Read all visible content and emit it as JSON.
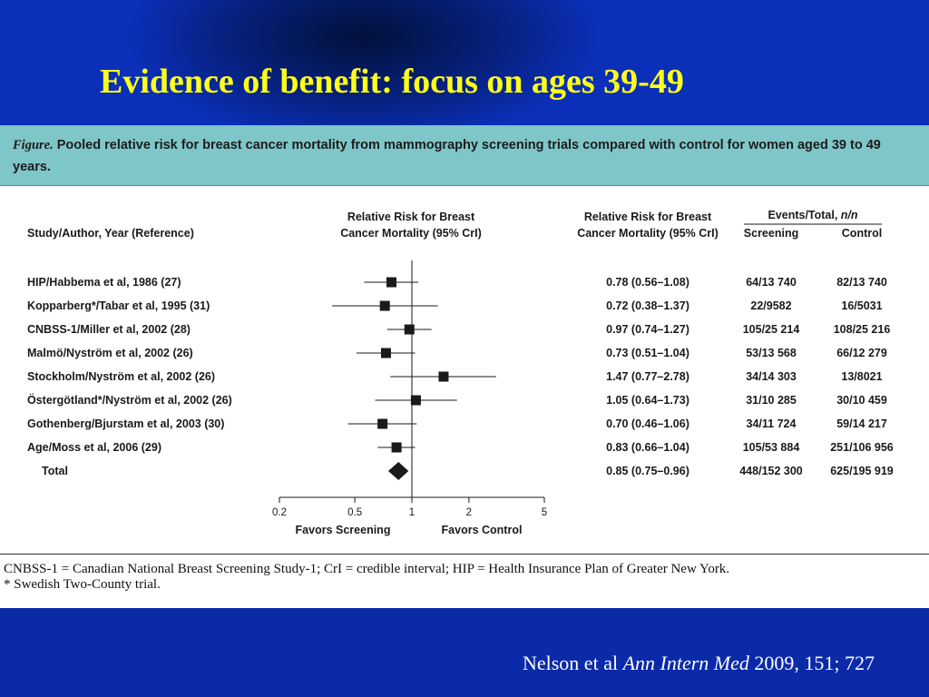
{
  "slide_title": "Evidence of benefit: focus on ages 39-49",
  "caption": {
    "label": "Figure.",
    "text": "Pooled relative risk for breast cancer mortality from mammography screening trials compared with control for women aged 39 to 49 years."
  },
  "table_headers": {
    "study": "Study/Author, Year (Reference)",
    "rr_plot_line1": "Relative Risk for Breast",
    "rr_plot_line2": "Cancer Mortality (95% CrI)",
    "rr_value_line1": "Relative Risk for Breast",
    "rr_value_line2": "Cancer Mortality (95% CrI)",
    "events_title_plain": "Events/Total, ",
    "events_title_italic": "n/n",
    "screening": "Screening",
    "control": "Control"
  },
  "chart_data": {
    "type": "forest",
    "scale": "log",
    "xlim": [
      0.2,
      5
    ],
    "xticks": [
      "0.2",
      "0.5",
      "1",
      "2",
      "5"
    ],
    "reference_line": 1,
    "xlabel_left": "Favors Screening",
    "xlabel_right": "Favors Control",
    "rows": [
      {
        "study": "HIP/Habbema et al, 1986 (27)",
        "rr": 0.78,
        "lo": 0.56,
        "hi": 1.08,
        "rr_text": "0.78 (0.56–1.08)",
        "screening": "64/13 740",
        "control": "82/13 740"
      },
      {
        "study": "Kopparberg*/Tabar et al, 1995 (31)",
        "rr": 0.72,
        "lo": 0.38,
        "hi": 1.37,
        "rr_text": "0.72 (0.38–1.37)",
        "screening": "22/9582",
        "control": "16/5031"
      },
      {
        "study": "CNBSS-1/Miller et al, 2002 (28)",
        "rr": 0.97,
        "lo": 0.74,
        "hi": 1.27,
        "rr_text": "0.97 (0.74–1.27)",
        "screening": "105/25 214",
        "control": "108/25 216"
      },
      {
        "study": "Malmö/Nyström et al, 2002 (26)",
        "rr": 0.73,
        "lo": 0.51,
        "hi": 1.04,
        "rr_text": "0.73 (0.51–1.04)",
        "screening": "53/13 568",
        "control": "66/12 279"
      },
      {
        "study": "Stockholm/Nyström et al, 2002 (26)",
        "rr": 1.47,
        "lo": 0.77,
        "hi": 2.78,
        "rr_text": "1.47 (0.77–2.78)",
        "screening": "34/14 303",
        "control": "13/8021"
      },
      {
        "study": "Östergötland*/Nyström et al, 2002 (26)",
        "rr": 1.05,
        "lo": 0.64,
        "hi": 1.73,
        "rr_text": "1.05 (0.64–1.73)",
        "screening": "31/10 285",
        "control": "30/10 459"
      },
      {
        "study": "Gothenberg/Bjurstam et al, 2003 (30)",
        "rr": 0.7,
        "lo": 0.46,
        "hi": 1.06,
        "rr_text": "0.70 (0.46–1.06)",
        "screening": "34/11 724",
        "control": "59/14 217"
      },
      {
        "study": "Age/Moss et al, 2006 (29)",
        "rr": 0.83,
        "lo": 0.66,
        "hi": 1.04,
        "rr_text": "0.83 (0.66–1.04)",
        "screening": "105/53 884",
        "control": "251/106 956"
      }
    ],
    "total": {
      "study": "Total",
      "rr": 0.85,
      "lo": 0.75,
      "hi": 0.96,
      "rr_text": "0.85 (0.75–0.96)",
      "screening": "448/152 300",
      "control": "625/195 919"
    }
  },
  "footnotes": [
    "CNBSS-1 = Canadian National Breast Screening Study-1; CrI = credible interval; HIP = Health Insurance Plan of Greater New York.",
    "* Swedish Two-County trial."
  ],
  "citation": {
    "authors": "Nelson et al ",
    "journal": "Ann Intern Med",
    "rest": " 2009, 151; 727"
  },
  "colors": {
    "background_blue": "#0a2aa8",
    "title_yellow": "#ffff1a",
    "caption_band": "#7fc6c9"
  }
}
